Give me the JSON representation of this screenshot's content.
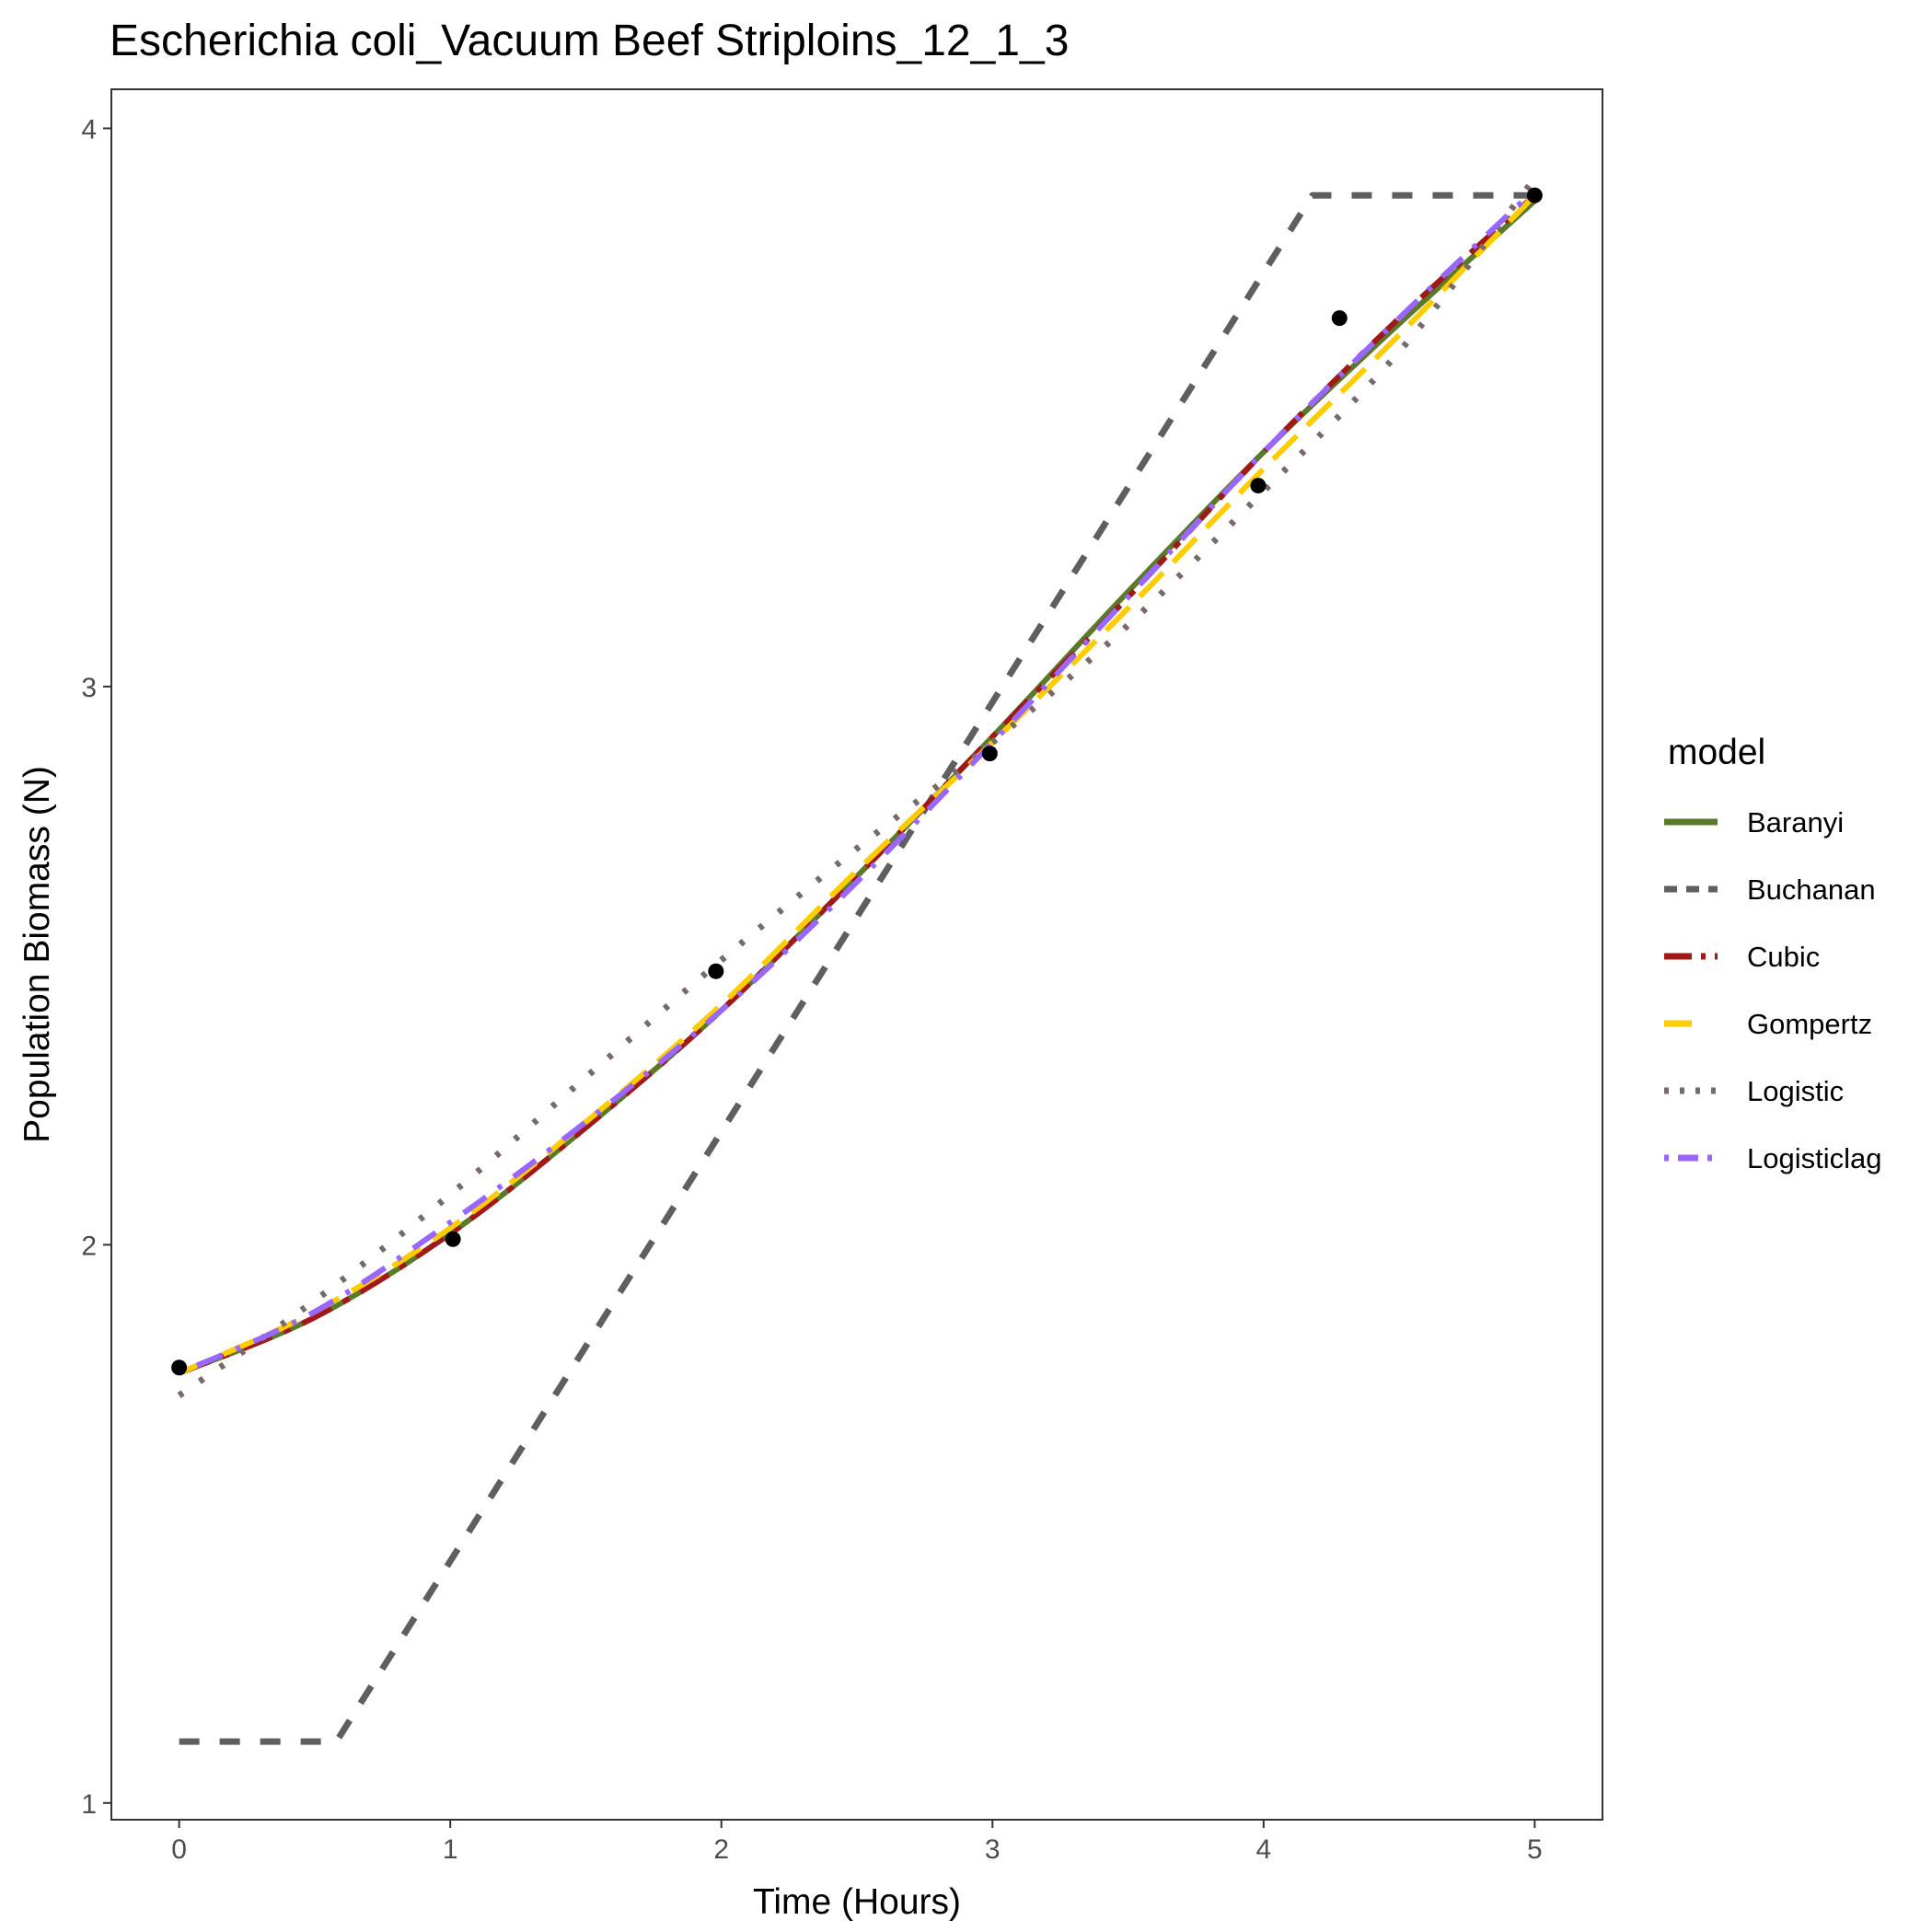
{
  "chart_data": {
    "type": "line",
    "title": "Escherichia coli_Vacuum Beef Striploins_12_1_3",
    "xlabel": "Time (Hours)",
    "ylabel": "Population Biomass (N)",
    "xlim": [
      -0.25,
      5.25
    ],
    "ylim": [
      0.97,
      4.07
    ],
    "x_ticks": [
      0,
      1,
      2,
      3,
      4,
      5
    ],
    "y_ticks": [
      1,
      2,
      3,
      4
    ],
    "x_tick_labels": [
      "0",
      "1",
      "2",
      "3",
      "4",
      "5"
    ],
    "y_tick_labels": [
      "1",
      "2",
      "3",
      "4"
    ],
    "grid": false,
    "legend": {
      "title": "model",
      "placement": "right"
    },
    "points": {
      "x": [
        0,
        1.01,
        1.98,
        2.99,
        3.98,
        4.28,
        5.0
      ],
      "y": [
        1.78,
        2.01,
        2.49,
        2.88,
        3.36,
        3.66,
        3.88
      ],
      "color": "#000000"
    },
    "series": [
      {
        "name": "Baranyi",
        "color": "#5a7a2a",
        "dash": "solid",
        "x": [
          0,
          0.5,
          1,
          1.5,
          2,
          2.5,
          3,
          3.5,
          4,
          4.5,
          5
        ],
        "y": [
          1.77,
          1.87,
          2.02,
          2.21,
          2.42,
          2.66,
          2.91,
          3.17,
          3.42,
          3.65,
          3.87
        ]
      },
      {
        "name": "Buchanan",
        "color": "#5f5f5f",
        "dash": "dashed",
        "x": [
          0,
          0.58,
          4.18,
          5.0
        ],
        "y": [
          1.11,
          1.11,
          3.88,
          3.88
        ]
      },
      {
        "name": "Cubic",
        "color": "#a01818",
        "dash": "longdash-dot",
        "x": [
          0,
          0.5,
          1,
          1.5,
          2,
          2.5,
          3,
          3.5,
          4,
          4.5,
          5
        ],
        "y": [
          1.77,
          1.87,
          2.02,
          2.21,
          2.42,
          2.66,
          2.91,
          3.16,
          3.42,
          3.66,
          3.88
        ]
      },
      {
        "name": "Gompertz",
        "color": "#ffcc00",
        "dash": "longdash",
        "x": [
          0,
          0.5,
          1,
          1.5,
          2,
          2.5,
          3,
          3.5,
          4,
          4.5,
          5
        ],
        "y": [
          1.77,
          1.88,
          2.03,
          2.22,
          2.43,
          2.67,
          2.9,
          3.14,
          3.39,
          3.63,
          3.88
        ]
      },
      {
        "name": "Logistic",
        "color": "#766a6a",
        "dash": "dotted",
        "x": [
          0,
          0.5,
          1,
          1.5,
          2,
          2.5,
          3,
          3.5,
          4,
          4.5,
          5
        ],
        "y": [
          1.73,
          1.9,
          2.09,
          2.3,
          2.51,
          2.71,
          2.9,
          3.11,
          3.35,
          3.6,
          3.91
        ]
      },
      {
        "name": "Logisticlag",
        "color": "#9966ff",
        "dash": "dotdash",
        "x": [
          0,
          0.5,
          1,
          1.5,
          2,
          2.5,
          3,
          3.5,
          4,
          4.5,
          5
        ],
        "y": [
          1.77,
          1.88,
          2.04,
          2.22,
          2.42,
          2.65,
          2.9,
          3.16,
          3.42,
          3.66,
          3.89
        ]
      }
    ]
  }
}
